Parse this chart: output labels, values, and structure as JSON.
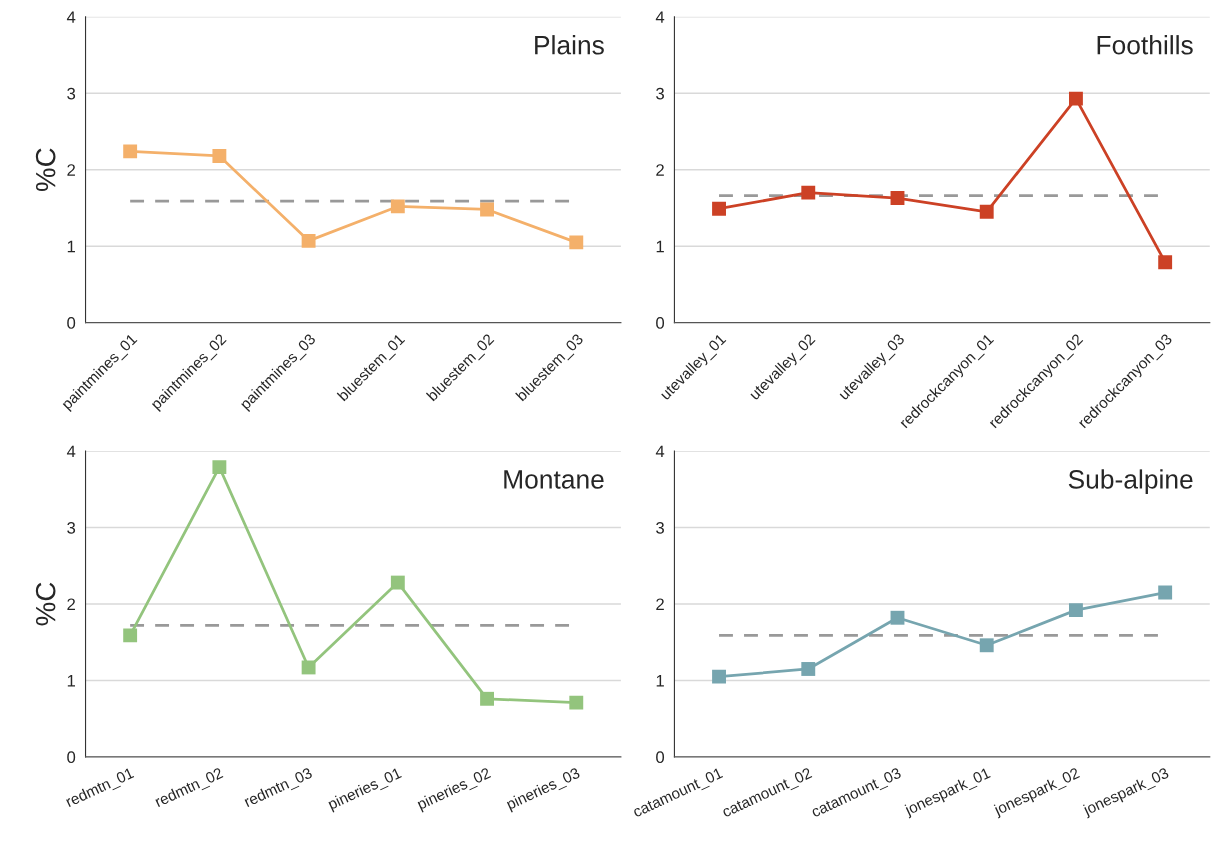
{
  "chart_data": [
    {
      "type": "line",
      "title": "Plains",
      "ylabel": "%C",
      "categories": [
        "paintmines_01",
        "paintmines_02",
        "paintmines_03",
        "bluestem_01",
        "bluestem_02",
        "bluestem_03"
      ],
      "series": [
        {
          "color": "#f4b06a",
          "values": [
            2.24,
            2.18,
            1.07,
            1.52,
            1.48,
            1.05
          ]
        }
      ],
      "ref_lines": [
        {
          "axis": "y",
          "value": 1.59,
          "color": "#999999",
          "line_style": "dashed"
        }
      ],
      "ylim": [
        0,
        4
      ],
      "yticks": [
        0,
        1,
        2,
        3,
        4
      ],
      "grid": "y",
      "marker": "square",
      "line_style": "solid"
    },
    {
      "type": "line",
      "title": "Foothills",
      "categories": [
        "utevalley_01",
        "utevalley_02",
        "utevalley_03",
        "redrockcanyon_01",
        "redrockcanyon_02",
        "redrockcanyon_03"
      ],
      "series": [
        {
          "color": "#cc4125",
          "values": [
            1.49,
            1.7,
            1.63,
            1.45,
            2.93,
            0.79
          ]
        }
      ],
      "ref_lines": [
        {
          "axis": "y",
          "value": 1.66,
          "color": "#999999",
          "line_style": "dashed"
        }
      ],
      "ylim": [
        0,
        4
      ],
      "yticks": [
        0,
        1,
        2,
        3,
        4
      ],
      "grid": "y",
      "marker": "square",
      "line_style": "solid"
    },
    {
      "type": "line",
      "title": "Montane",
      "ylabel": "%C",
      "categories": [
        "redmtn_01",
        "redmtn_02",
        "redmtn_03",
        "pineries_01",
        "pineries_02",
        "pineries_03"
      ],
      "series": [
        {
          "color": "#93c47d",
          "values": [
            1.59,
            3.79,
            1.17,
            2.28,
            0.76,
            0.71
          ]
        }
      ],
      "ref_lines": [
        {
          "axis": "y",
          "value": 1.72,
          "color": "#999999",
          "line_style": "dashed"
        }
      ],
      "ylim": [
        0,
        4
      ],
      "yticks": [
        0,
        1,
        2,
        3,
        4
      ],
      "grid": "y",
      "marker": "square",
      "line_style": "solid"
    },
    {
      "type": "line",
      "title": "Sub-alpine",
      "categories": [
        "catamount_01",
        "catamount_02",
        "catamount_03",
        "jonespark_01",
        "jonespark_02",
        "jonespark_03"
      ],
      "series": [
        {
          "color": "#76a5af",
          "values": [
            1.05,
            1.15,
            1.82,
            1.46,
            1.92,
            2.15
          ]
        }
      ],
      "ref_lines": [
        {
          "axis": "y",
          "value": 1.59,
          "color": "#999999",
          "line_style": "dashed"
        }
      ],
      "ylim": [
        0,
        4
      ],
      "yticks": [
        0,
        1,
        2,
        3,
        4
      ],
      "grid": "y",
      "marker": "square",
      "line_style": "solid"
    }
  ]
}
